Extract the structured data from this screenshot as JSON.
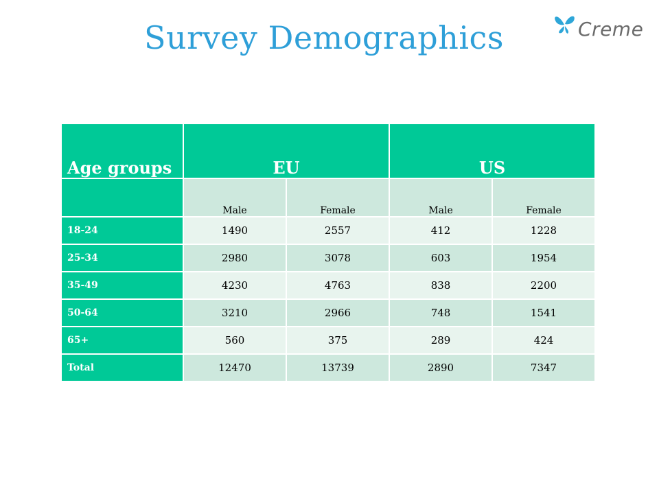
{
  "title": "Survey Demographics",
  "logo": {
    "text": "Creme",
    "icon": "butterfly-icon"
  },
  "colors": {
    "title": "#2e9fd8",
    "header_bg": "#00c997",
    "row_light": "#e8f4ee",
    "row_dark": "#cde8dd"
  },
  "table": {
    "header": {
      "age": "Age groups",
      "eu": "EU",
      "us": "US"
    },
    "subheader": [
      "Male",
      "Female",
      "Male",
      "Female"
    ],
    "rows": [
      {
        "label": "18-24",
        "values": [
          "1490",
          "2557",
          "412",
          "1228"
        ]
      },
      {
        "label": "25-34",
        "values": [
          "2980",
          "3078",
          "603",
          "1954"
        ]
      },
      {
        "label": "35-49",
        "values": [
          "4230",
          "4763",
          "838",
          "2200"
        ]
      },
      {
        "label": "50-64",
        "values": [
          "3210",
          "2966",
          "748",
          "1541"
        ]
      },
      {
        "label": "65+",
        "values": [
          "560",
          "375",
          "289",
          "424"
        ]
      },
      {
        "label": "Total",
        "values": [
          "12470",
          "13739",
          "2890",
          "7347"
        ]
      }
    ]
  }
}
